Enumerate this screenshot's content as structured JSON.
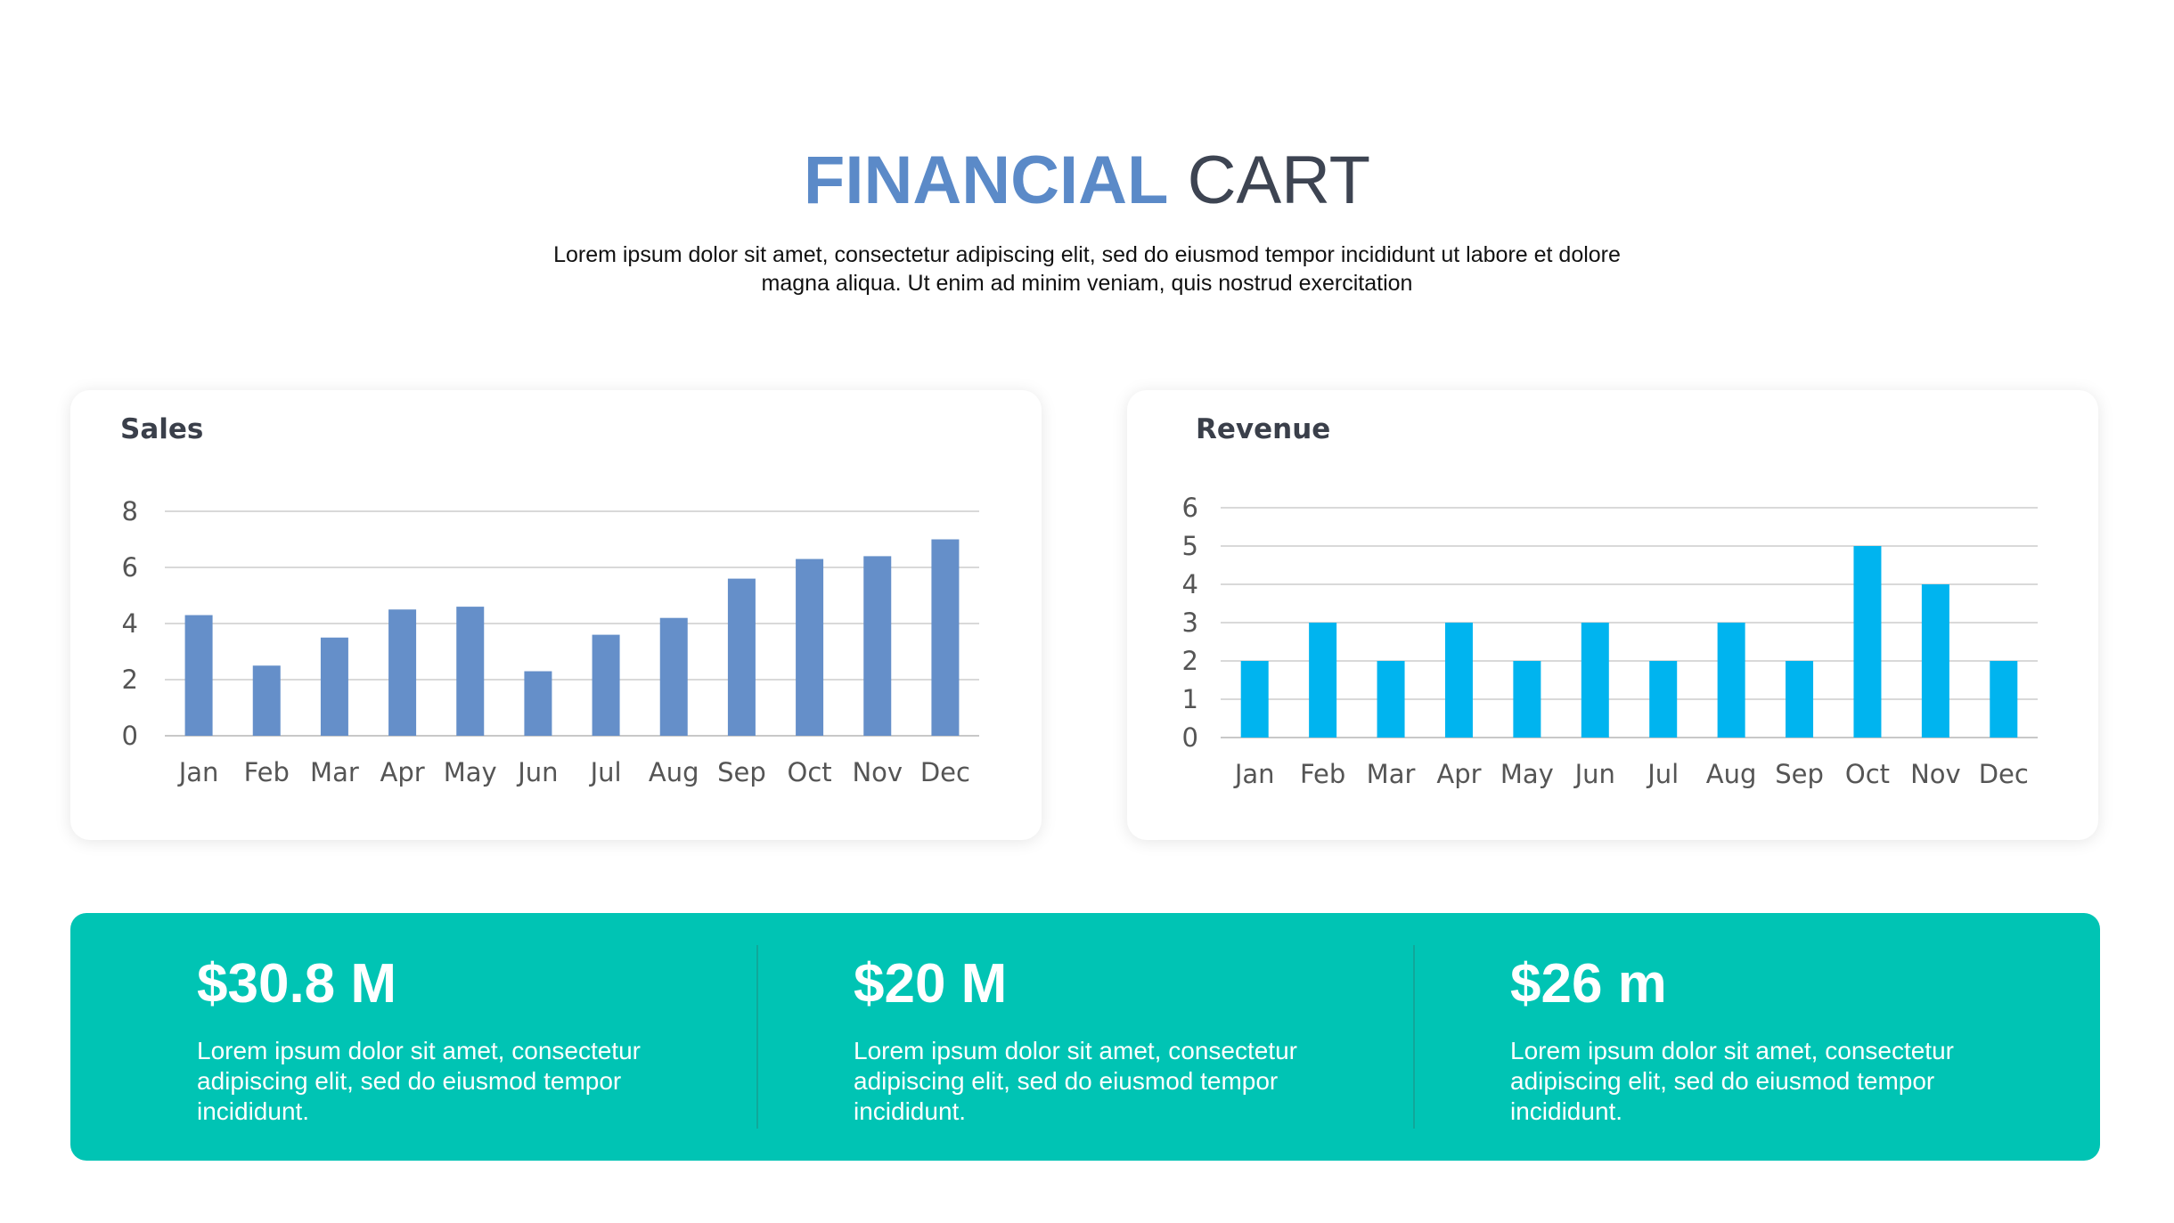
{
  "header": {
    "title_bold": "FINANCIAL",
    "title_light": "CART",
    "subtitle_line1": "Lorem ipsum dolor sit amet, consectetur adipiscing elit, sed do eiusmod tempor incididunt ut labore et dolore",
    "subtitle_line2": "magna aliqua. Ut enim ad minim veniam, quis nostrud exercitation"
  },
  "colors": {
    "title_accent": "#5b8ac8",
    "sales_bar": "#658fc9",
    "revenue_bar": "#00b4ef",
    "stats_band": "#00c4b4"
  },
  "chart_data": [
    {
      "type": "bar",
      "title": "Sales",
      "categories": [
        "Jan",
        "Feb",
        "Mar",
        "Apr",
        "May",
        "Jun",
        "Jul",
        "Aug",
        "Sep",
        "Oct",
        "Nov",
        "Dec"
      ],
      "values": [
        4.3,
        2.5,
        3.5,
        4.5,
        4.6,
        2.3,
        3.6,
        4.2,
        5.6,
        6.3,
        6.4,
        7.0
      ],
      "ylim": [
        0,
        8
      ],
      "yticks": [
        0,
        2,
        4,
        6,
        8
      ],
      "grid": true,
      "color": "#658fc9"
    },
    {
      "type": "bar",
      "title": "Revenue",
      "categories": [
        "Jan",
        "Feb",
        "Mar",
        "Apr",
        "May",
        "Jun",
        "Jul",
        "Aug",
        "Sep",
        "Oct",
        "Nov",
        "Dec"
      ],
      "values": [
        2,
        3,
        2,
        3,
        2,
        3,
        2,
        3,
        2,
        5,
        4,
        2
      ],
      "ylim": [
        0,
        6
      ],
      "yticks": [
        0,
        1,
        2,
        3,
        4,
        5,
        6
      ],
      "grid": true,
      "color": "#00b4ef"
    }
  ],
  "stats": [
    {
      "value": "$30.8 M",
      "desc_line1": "Lorem ipsum dolor sit amet, consectetur",
      "desc_line2": "adipiscing elit, sed do eiusmod tempor",
      "desc_line3": "incididunt."
    },
    {
      "value": "$20 M",
      "desc_line1": "Lorem ipsum dolor sit amet, consectetur",
      "desc_line2": "adipiscing elit, sed do eiusmod tempor",
      "desc_line3": "incididunt."
    },
    {
      "value": "$26 m",
      "desc_line1": "Lorem ipsum dolor sit amet, consectetur",
      "desc_line2": "adipiscing elit, sed do eiusmod tempor",
      "desc_line3": "incididunt."
    }
  ]
}
